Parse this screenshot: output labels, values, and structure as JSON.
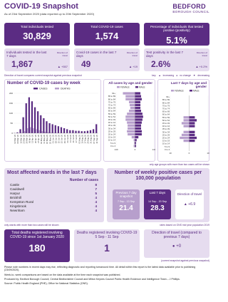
{
  "header": {
    "title": "COVID-19 Snapshot",
    "subtitle": "As of 23rd September 2020 (data reported up to 20th September 2020)",
    "logo_top": "BEDFORD",
    "logo_bottom": "BOROUGH COUNCIL"
  },
  "summary_tiles": [
    {
      "label": "Total individuals tested",
      "value": "30,829"
    },
    {
      "label": "Total COVID-19 cases",
      "value": "1,574"
    },
    {
      "label": "Percentage of individuals that tested positive (positivity)",
      "value": "5.1%"
    }
  ],
  "weekly_tiles": [
    {
      "label": "Individuals tested in the last 7 days",
      "direction_label": "Direction of travel",
      "value": "1,867",
      "change": "+557"
    },
    {
      "label": "Covid-19 cases in the last 7 days",
      "direction_label": "Direction of travel",
      "value": "49",
      "change": "+19"
    },
    {
      "label": "Test positivity in the last 7 days",
      "direction_label": "Direction of travel",
      "value": "2.6%",
      "change": "+0.2%"
    }
  ],
  "direction_note": "Direction of travel compares current snapshot against previous snapshot",
  "key": {
    "title": "key:",
    "increasing": "increasing",
    "no_change": "no change",
    "decreasing": "decreasing"
  },
  "chart_data": [
    {
      "type": "bar",
      "title": "Number of COVID-19 cases by week",
      "categories": [
        "02 Mar 20",
        "09 Mar 20",
        "16 Mar 20",
        "23 Mar 20",
        "30 Mar 20",
        "06 Apr 20",
        "13 Apr 20",
        "20 Apr 20",
        "27 Apr 20",
        "04 May 20",
        "11 May 20",
        "18 May 20",
        "25 May 20",
        "01 Jun 20",
        "08 Jun 20",
        "15 Jun 20",
        "22 Jun 20",
        "29 Jun 20",
        "06 Jul 20",
        "13 Jul 20",
        "20 Jul 20",
        "27 Jul 20",
        "03 Aug 20",
        "10 Aug 20",
        "17 Aug 20",
        "24 Aug 20",
        "31 Aug 20",
        "07 Sep 20",
        "14 Sep 20"
      ],
      "series": [
        {
          "name": "CASES",
          "color": "#5b2c83",
          "values": [
            1,
            4,
            20,
            80,
            150,
            180,
            160,
            130,
            110,
            90,
            75,
            60,
            50,
            45,
            40,
            35,
            30,
            25,
            20,
            15,
            15,
            12,
            12,
            10,
            10,
            12,
            15,
            20,
            45
          ]
        },
        {
          "name": "DEATHS",
          "color": "#b79fcc",
          "values": [
            0,
            0,
            2,
            10,
            25,
            30,
            25,
            20,
            15,
            10,
            8,
            5,
            3,
            2,
            2,
            1,
            1,
            0,
            0,
            0,
            0,
            0,
            0,
            0,
            0,
            0,
            0,
            0,
            0
          ]
        }
      ],
      "ylim": [
        0,
        200
      ],
      "yticks": [
        0,
        50,
        100,
        150,
        200
      ]
    },
    {
      "type": "pyramid",
      "title": "All cases by age and gender",
      "categories": [
        "90+",
        "85 to 89",
        "80 to 84",
        "75 to 79",
        "70 to 74",
        "65 to 69",
        "60 to 64",
        "55 to 59",
        "50 to 54",
        "45 to 49",
        "40 to 44",
        "35 to 39",
        "30 to 34",
        "25 to 29",
        "20 to 24",
        "15 to 19",
        "10 to 14",
        "5 to 9",
        "0 to 4"
      ],
      "series": [
        {
          "name": "FEMALE",
          "color": "#b79fcc",
          "values": [
            90,
            70,
            70,
            45,
            40,
            35,
            45,
            60,
            70,
            70,
            60,
            55,
            55,
            60,
            55,
            25,
            10,
            8,
            10
          ]
        },
        {
          "name": "MALE",
          "color": "#5b2c83",
          "values": [
            40,
            45,
            50,
            40,
            40,
            40,
            45,
            55,
            60,
            55,
            50,
            45,
            45,
            50,
            50,
            25,
            12,
            8,
            8
          ]
        }
      ],
      "xlim": [
        -140,
        140
      ],
      "xticks": [
        {
          "value": -140,
          "label": "140"
        },
        0,
        140
      ]
    },
    {
      "type": "pyramid",
      "title": "Last 7 days by age and gender",
      "categories": [
        "90+",
        "85 to 89",
        "80 to 84",
        "75 to 79",
        "70 to 74",
        "65 to 69",
        "60 to 64",
        "55 to 59",
        "50 to 54",
        "45 to 49",
        "40 to 44",
        "35 to 39",
        "30 to 34",
        "25 to 29",
        "20 to 24",
        "15 to 19",
        "10 to 14",
        "5 to 9",
        "0 to 4"
      ],
      "series": [
        {
          "name": "FEMALE",
          "color": "#b79fcc",
          "values": [
            null,
            null,
            null,
            null,
            null,
            null,
            null,
            3,
            3,
            4,
            3,
            null,
            3,
            4,
            5,
            3,
            null,
            null,
            null
          ]
        },
        {
          "name": "MALE",
          "color": "#5b2c83",
          "values": [
            null,
            null,
            null,
            null,
            null,
            null,
            null,
            3,
            4,
            3,
            3,
            null,
            3,
            3,
            4,
            3,
            null,
            null,
            null
          ]
        }
      ],
      "xlim": [
        -10,
        10
      ],
      "xticks": [
        {
          "value": -10,
          "label": "10"
        },
        0,
        10
      ]
    }
  ],
  "age_note": "only age groups with more than two cases will be shown",
  "wards": {
    "title": "Most affected wards in the last 7 days",
    "column": "Number of cases",
    "rows": [
      [
        "Castle",
        8
      ],
      [
        "Cauldwell",
        7
      ],
      [
        "Harpur",
        5
      ],
      [
        "Brickhill",
        4
      ],
      [
        "Kempston Rural",
        4
      ],
      [
        "Kingsbrook",
        4
      ],
      [
        "Newnham",
        4
      ]
    ],
    "note": "only wards with more than two cases will be shown"
  },
  "rates": {
    "title": "Number of weekly positive cases per 100,000 population",
    "previous": {
      "label": "Previous 7 day snapshot",
      "period": "7 Sep - 13 Sep",
      "value": 21.4
    },
    "last": {
      "label": "Last 7 days",
      "period": "14 Sep - 20 Sep",
      "value": 28.3
    },
    "direction": {
      "label": "Direction of travel",
      "value": "+6.9"
    },
    "note": "rates based on ONS mid year population 2019"
  },
  "deaths": {
    "total": {
      "label": "Total deaths registered involving COVID-19 since 1st January 2020",
      "value": 180
    },
    "week": {
      "label": "Deaths registered involving COVID-19 5 Sep - 11 Sep",
      "value": 1
    },
    "direction": {
      "label": "Direction of travel (compared to previous 7 days)",
      "value": "+0"
    },
    "note": "(current snapshot against previous snapshot)"
  },
  "footer": [
    "Please note numbers in recent days may rise, reflecting diagnostic and reporting turnaround time. All detail within this report is the latest data available prior to publishing (23/09/2020).",
    "Week-to- week comparisons are based on the data available at the time each snapshot was published.",
    "Produced by: Bedford Borough Council, Central Bedfordshire Council and Milton Keynes Council Public Health Evidence and Intelligence Team – J Phillips.",
    "Source: Public Health England (PHE), Office for National Statistics (ONS)."
  ]
}
